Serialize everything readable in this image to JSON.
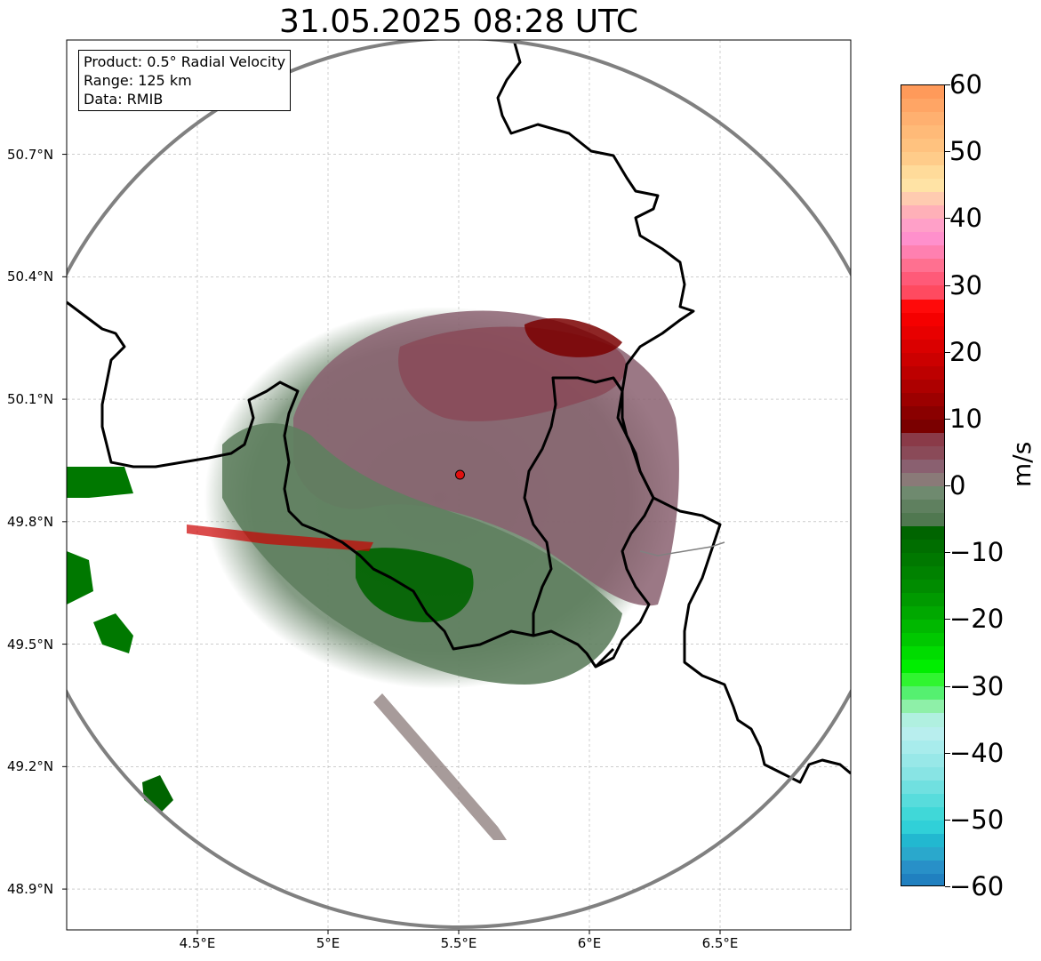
{
  "title": "31.05.2025 08:28 UTC",
  "info": {
    "product": "Product: 0.5° Radial Velocity",
    "range": "Range: 125 km",
    "data": "Data: RMIB"
  },
  "map": {
    "lat_ticks": [
      {
        "value": 50.7,
        "label": "50.7°N"
      },
      {
        "value": 50.4,
        "label": "50.4°N"
      },
      {
        "value": 50.1,
        "label": "50.1°N"
      },
      {
        "value": 49.8,
        "label": "49.8°N"
      },
      {
        "value": 49.5,
        "label": "49.5°N"
      },
      {
        "value": 49.2,
        "label": "49.2°N"
      },
      {
        "value": 48.9,
        "label": "48.9°N"
      }
    ],
    "lon_ticks": [
      {
        "value": 4.5,
        "label": "4.5°E"
      },
      {
        "value": 5.0,
        "label": "5°E"
      },
      {
        "value": 5.5,
        "label": "5.5°E"
      },
      {
        "value": 6.0,
        "label": "6°E"
      },
      {
        "value": 6.5,
        "label": "6.5°E"
      }
    ],
    "extent": {
      "lon_min": 4.0,
      "lon_max": 7.0,
      "lat_min": 48.8,
      "lat_max": 50.98
    },
    "radar_site": {
      "lon": 5.505,
      "lat": 49.915
    },
    "range_ring_color": "#808080",
    "border_color": "#000000",
    "site_color": "#e01010"
  },
  "colorbar": {
    "unit": "m/s",
    "min": -60,
    "max": 60,
    "ticks": [
      {
        "value": 60,
        "label": "60"
      },
      {
        "value": 50,
        "label": "50"
      },
      {
        "value": 40,
        "label": "40"
      },
      {
        "value": 30,
        "label": "30"
      },
      {
        "value": 20,
        "label": "20"
      },
      {
        "value": 10,
        "label": "10"
      },
      {
        "value": 0,
        "label": "0"
      },
      {
        "value": -10,
        "label": "−10"
      },
      {
        "value": -20,
        "label": "−20"
      },
      {
        "value": -30,
        "label": "−30"
      },
      {
        "value": -40,
        "label": "−40"
      },
      {
        "value": -50,
        "label": "−50"
      },
      {
        "value": -60,
        "label": "−60"
      }
    ],
    "stops": [
      {
        "from": 58,
        "to": 60,
        "color": "#ff9a5a"
      },
      {
        "from": 56,
        "to": 58,
        "color": "#ffa565"
      },
      {
        "from": 54,
        "to": 56,
        "color": "#ffb070"
      },
      {
        "from": 52,
        "to": 54,
        "color": "#ffba78"
      },
      {
        "from": 50,
        "to": 52,
        "color": "#ffc27f"
      },
      {
        "from": 48,
        "to": 50,
        "color": "#ffcc8a"
      },
      {
        "from": 46,
        "to": 48,
        "color": "#ffdb9a"
      },
      {
        "from": 44,
        "to": 46,
        "color": "#ffe3a5"
      },
      {
        "from": 42,
        "to": 44,
        "color": "#ffcbb0"
      },
      {
        "from": 40,
        "to": 42,
        "color": "#ffb0b8"
      },
      {
        "from": 38,
        "to": 40,
        "color": "#ffa0c8"
      },
      {
        "from": 36,
        "to": 38,
        "color": "#ff90cc"
      },
      {
        "from": 34,
        "to": 36,
        "color": "#ff80b0"
      },
      {
        "from": 32,
        "to": 34,
        "color": "#ff7090"
      },
      {
        "from": 30,
        "to": 32,
        "color": "#ff5a78"
      },
      {
        "from": 28,
        "to": 30,
        "color": "#ff4a60"
      },
      {
        "from": 26,
        "to": 28,
        "color": "#ff0a0a"
      },
      {
        "from": 24,
        "to": 26,
        "color": "#f50000"
      },
      {
        "from": 22,
        "to": 24,
        "color": "#e80000"
      },
      {
        "from": 20,
        "to": 22,
        "color": "#da0000"
      },
      {
        "from": 18,
        "to": 20,
        "color": "#cc0000"
      },
      {
        "from": 16,
        "to": 18,
        "color": "#bd0000"
      },
      {
        "from": 14,
        "to": 16,
        "color": "#ad0000"
      },
      {
        "from": 12,
        "to": 14,
        "color": "#9c0000"
      },
      {
        "from": 10,
        "to": 12,
        "color": "#8a0000"
      },
      {
        "from": 8,
        "to": 10,
        "color": "#7a0000"
      },
      {
        "from": 6,
        "to": 8,
        "color": "#8a3a48"
      },
      {
        "from": 4,
        "to": 6,
        "color": "#8a4a58"
      },
      {
        "from": 2,
        "to": 4,
        "color": "#8a6070"
      },
      {
        "from": 0,
        "to": 2,
        "color": "#8a7a78"
      },
      {
        "from": -2,
        "to": 0,
        "color": "#6f8a6f"
      },
      {
        "from": -4,
        "to": -2,
        "color": "#5f805f"
      },
      {
        "from": -6,
        "to": -4,
        "color": "#507850"
      },
      {
        "from": -8,
        "to": -6,
        "color": "#006400"
      },
      {
        "from": -10,
        "to": -8,
        "color": "#006e00"
      },
      {
        "from": -12,
        "to": -10,
        "color": "#007800"
      },
      {
        "from": -14,
        "to": -12,
        "color": "#008200"
      },
      {
        "from": -16,
        "to": -14,
        "color": "#008c00"
      },
      {
        "from": -18,
        "to": -16,
        "color": "#009a00"
      },
      {
        "from": -20,
        "to": -18,
        "color": "#00a800"
      },
      {
        "from": -22,
        "to": -20,
        "color": "#00b800"
      },
      {
        "from": -24,
        "to": -22,
        "color": "#00c800"
      },
      {
        "from": -26,
        "to": -24,
        "color": "#00dc00"
      },
      {
        "from": -28,
        "to": -26,
        "color": "#00ee00"
      },
      {
        "from": -30,
        "to": -28,
        "color": "#30f530"
      },
      {
        "from": -32,
        "to": -30,
        "color": "#55f070"
      },
      {
        "from": -34,
        "to": -32,
        "color": "#8ef0a8"
      },
      {
        "from": -36,
        "to": -34,
        "color": "#b0f0e0"
      },
      {
        "from": -38,
        "to": -36,
        "color": "#b8eeee"
      },
      {
        "from": -40,
        "to": -38,
        "color": "#a8ecec"
      },
      {
        "from": -42,
        "to": -40,
        "color": "#98e8e8"
      },
      {
        "from": -44,
        "to": -42,
        "color": "#88e4e4"
      },
      {
        "from": -46,
        "to": -44,
        "color": "#70e0e0"
      },
      {
        "from": -48,
        "to": -46,
        "color": "#58dcdc"
      },
      {
        "from": -50,
        "to": -48,
        "color": "#40d8d8"
      },
      {
        "from": -52,
        "to": -50,
        "color": "#30d0d8"
      },
      {
        "from": -54,
        "to": -52,
        "color": "#22b8d0"
      },
      {
        "from": -56,
        "to": -54,
        "color": "#2aa8cc"
      },
      {
        "from": -58,
        "to": -56,
        "color": "#2890c8"
      },
      {
        "from": -60,
        "to": -58,
        "color": "#2080c0"
      }
    ]
  }
}
